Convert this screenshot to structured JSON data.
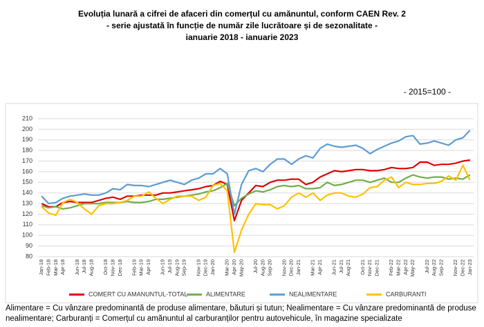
{
  "chart_data": {
    "type": "line",
    "title": [
      "Evoluția lunară a cifrei de afaceri din comerțul cu amănuntul, conform CAEN Rev. 2",
      "- serie ajustată în funcție de număr zile lucrătoare și de sezonalitate -",
      "ianuarie 2018 - ianuarie 2023"
    ],
    "annotation": "- 2015=100 -",
    "footnote": "Alimentare = Cu vânzare predominantă de produse alimentare, băuturi și tutun; Nealimentare = Cu vânzare predominantă de produse nealimentare; Carburanți = Comerțul cu amănuntul al carburanților pentru autovehicule, în magazine specializate",
    "categories": [
      "Jan-18",
      "Feb-18",
      "Mar-18",
      "Apr-18",
      null,
      "Jun-18",
      "Jul-18",
      "Aug-18",
      null,
      "Oct-18",
      "Nov-18",
      "Dec-18",
      null,
      "Feb-19",
      "Mar-19",
      "Apr-19",
      null,
      "Jun-19",
      "Jul-19",
      "Aug-19",
      "Sep-19",
      null,
      "Nov-19",
      "Dec-19",
      "Jan-20",
      null,
      "Mar-20",
      "Apr-20",
      "May-20",
      null,
      "Jul-20",
      "Aug-20",
      "Sep-20",
      null,
      "Nov-20",
      "Dec-20",
      "Jan-21",
      null,
      "Mar-21",
      "Apr-21",
      null,
      "Jun-21",
      "Jul-21",
      "Aug-21",
      null,
      "Oct-21",
      "Nov-21",
      "Dec-21",
      null,
      "Feb-22",
      "Mar-22",
      "Apr-22",
      "May-22",
      null,
      "Jul-22",
      "Aug-22",
      "Sep-22",
      null,
      "Nov-22",
      "Dec-22",
      "Jan-23"
    ],
    "series": [
      {
        "name": "COMERT CU AMANUNTUL-TOTAL",
        "color": "#e00000",
        "values": [
          130,
          127,
          127,
          131,
          132,
          131,
          131,
          131,
          133,
          135,
          136,
          134,
          137,
          137,
          138,
          138,
          138,
          140,
          140,
          141,
          142,
          143,
          144,
          146,
          147,
          151,
          148,
          114,
          133,
          140,
          147,
          146,
          150,
          152,
          152,
          153,
          153,
          148,
          150,
          155,
          158,
          161,
          160,
          161,
          162,
          162,
          161,
          161,
          162,
          164,
          163,
          163,
          164,
          169,
          169,
          166,
          167,
          167,
          168,
          170,
          171
        ]
      },
      {
        "name": "ALIMENTARE",
        "color": "#70ad47",
        "values": [
          128,
          126,
          127,
          125,
          126,
          128,
          130,
          130,
          130,
          131,
          131,
          131,
          132,
          131,
          131,
          132,
          134,
          134,
          135,
          136,
          137,
          138,
          139,
          141,
          142,
          145,
          149,
          128,
          135,
          139,
          142,
          141,
          143,
          146,
          147,
          146,
          147,
          144,
          144,
          145,
          150,
          147,
          148,
          150,
          152,
          152,
          150,
          152,
          154,
          150,
          150,
          154,
          157,
          155,
          154,
          155,
          155,
          153,
          154,
          153,
          157
        ]
      },
      {
        "name": "NEALIMENTARE",
        "color": "#5b9bd5",
        "values": [
          137,
          130,
          131,
          135,
          137,
          138,
          139,
          138,
          138,
          140,
          144,
          143,
          148,
          147,
          147,
          146,
          148,
          150,
          152,
          150,
          148,
          152,
          154,
          158,
          158,
          163,
          158,
          120,
          148,
          161,
          163,
          160,
          167,
          172,
          172,
          167,
          172,
          175,
          173,
          182,
          186,
          184,
          183,
          184,
          185,
          182,
          177,
          181,
          184,
          187,
          189,
          193,
          194,
          186,
          187,
          189,
          187,
          185,
          190,
          192,
          199
        ]
      },
      {
        "name": "CARBURANTI",
        "color": "#ffc000",
        "values": [
          127,
          121,
          119,
          131,
          134,
          131,
          125,
          120,
          128,
          130,
          130,
          131,
          133,
          137,
          137,
          141,
          135,
          130,
          134,
          137,
          137,
          137,
          133,
          136,
          147,
          149,
          142,
          84,
          105,
          120,
          130,
          129,
          129,
          125,
          128,
          136,
          140,
          136,
          140,
          133,
          138,
          140,
          140,
          137,
          136,
          139,
          145,
          146,
          152,
          155,
          145,
          150,
          148,
          148,
          149,
          149,
          151,
          156,
          152,
          166,
          152
        ]
      }
    ],
    "ylim": [
      80,
      210
    ],
    "yticks": [
      80,
      90,
      100,
      110,
      120,
      130,
      140,
      150,
      160,
      170,
      180,
      190,
      200,
      210
    ],
    "grid": true,
    "legend": "bottom"
  }
}
